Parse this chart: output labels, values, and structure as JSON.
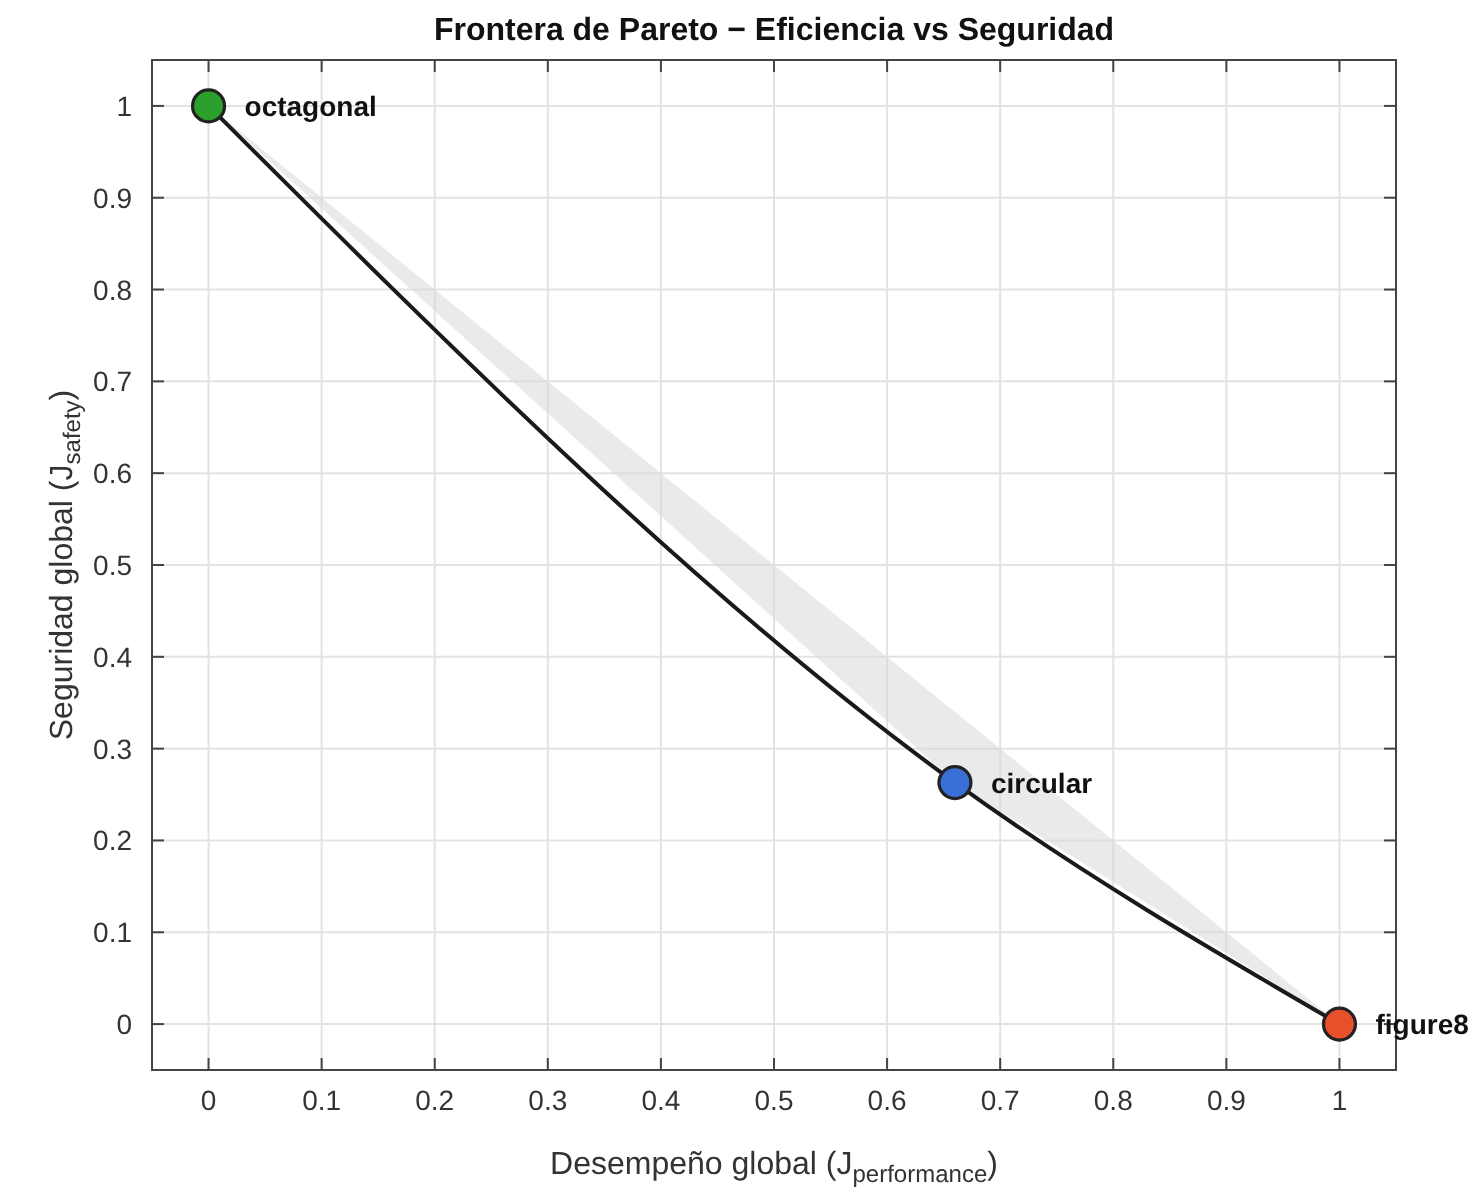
{
  "chart_data": {
    "type": "line",
    "title": "Frontera de Pareto − Eficiencia vs Seguridad",
    "xlabel": "Desempeño global (J$_{performance}$)",
    "ylabel": "Seguridad global (J$_{safety}$)",
    "series": [
      {
        "color": "#1a1a1a",
        "x": [
          0,
          0.66,
          1
        ],
        "values": [
          1,
          0.263,
          0
        ],
        "lower": [
          1,
          0.263,
          0
        ],
        "upper": [
          1,
          0.34,
          0
        ],
        "colors": [
          "#2ca02c",
          "#3a6fd8",
          "#e8502a"
        ]
      }
    ],
    "annotations": [
      {
        "text": "octagonal",
        "x": 0,
        "y": 1
      },
      {
        "text": "circular",
        "x": 0.66,
        "y": 0.263
      },
      {
        "text": "figure8",
        "x": 1,
        "y": 0
      }
    ],
    "xlim": [
      -0.05,
      1.05
    ],
    "ylim": [
      -0.05,
      1.05
    ],
    "xticks": [
      0,
      0.1,
      0.2,
      0.3,
      0.4,
      0.5,
      0.6,
      0.7,
      0.8,
      0.9,
      1
    ],
    "yticks": [
      0,
      0.1,
      0.2,
      0.3,
      0.4,
      0.5,
      0.6,
      0.7,
      0.8,
      0.9,
      1
    ],
    "grid": true,
    "marker": "circle",
    "line_style": "solid"
  }
}
